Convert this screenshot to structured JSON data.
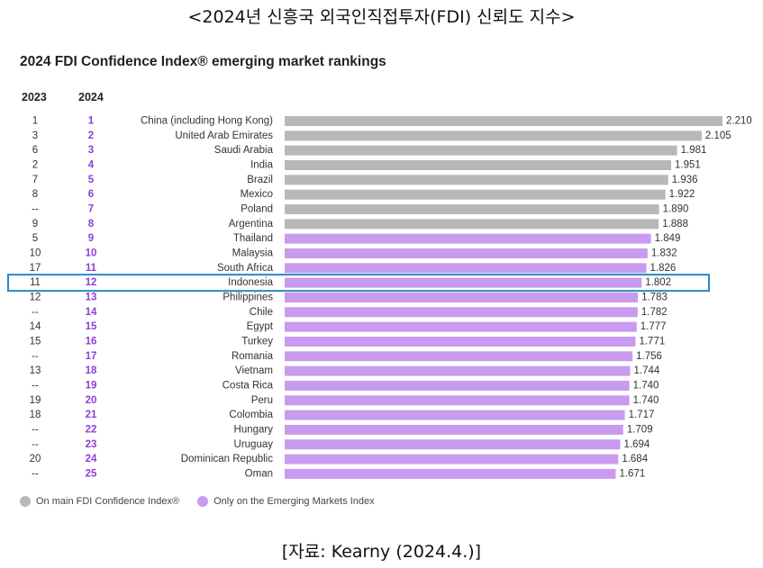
{
  "header": {
    "korean_title": "<2024년 신흥국 외국인직접투자(FDI) 신뢰도 지수>"
  },
  "colors": {
    "main_index": "#b8b8b8",
    "emerging_only": "#c89bf0",
    "rank2024_text": "#8a3fd6",
    "highlight_box": "#2a86c9"
  },
  "chart_data": {
    "type": "bar",
    "orientation": "horizontal",
    "title": "2024 FDI Confidence Index® emerging market rankings",
    "column_headers": {
      "rank_2023": "2023",
      "rank_2024": "2024"
    },
    "categories": [
      "China (including Hong Kong)",
      "United Arab Emirates",
      "Saudi Arabia",
      "India",
      "Brazil",
      "Mexico",
      "Poland",
      "Argentina",
      "Thailand",
      "Malaysia",
      "South Africa",
      "Indonesia",
      "Philippines",
      "Chile",
      "Egypt",
      "Turkey",
      "Romania",
      "Vietnam",
      "Costa Rica",
      "Peru",
      "Colombia",
      "Hungary",
      "Uruguay",
      "Dominican Republic",
      "Oman"
    ],
    "values": [
      2.21,
      2.105,
      1.981,
      1.951,
      1.936,
      1.922,
      1.89,
      1.888,
      1.849,
      1.832,
      1.826,
      1.802,
      1.783,
      1.782,
      1.777,
      1.771,
      1.756,
      1.744,
      1.74,
      1.74,
      1.717,
      1.709,
      1.694,
      1.684,
      1.671
    ],
    "value_labels": [
      "2.210",
      "2.105",
      "1.981",
      "1.951",
      "1.936",
      "1.922",
      "1.890",
      "1.888",
      "1.849",
      "1.832",
      "1.826",
      "1.802",
      "1.783",
      "1.782",
      "1.777",
      "1.771",
      "1.756",
      "1.744",
      "1.740",
      "1.740",
      "1.717",
      "1.709",
      "1.694",
      "1.684",
      "1.671"
    ],
    "rank_2023": [
      "1",
      "3",
      "6",
      "2",
      "7",
      "8",
      "--",
      "9",
      "5",
      "10",
      "17",
      "11",
      "12",
      "--",
      "14",
      "15",
      "--",
      "13",
      "--",
      "19",
      "18",
      "--",
      "--",
      "20",
      "--"
    ],
    "rank_2024": [
      "1",
      "2",
      "3",
      "4",
      "5",
      "6",
      "7",
      "8",
      "9",
      "10",
      "11",
      "12",
      "13",
      "14",
      "15",
      "16",
      "17",
      "18",
      "19",
      "20",
      "21",
      "22",
      "23",
      "24",
      "25"
    ],
    "on_main_index": [
      true,
      true,
      true,
      true,
      true,
      true,
      true,
      true,
      false,
      false,
      false,
      false,
      false,
      false,
      false,
      false,
      false,
      false,
      false,
      false,
      false,
      false,
      false,
      false,
      false
    ],
    "highlighted": "Indonesia",
    "xlim": [
      0,
      2.21
    ],
    "legend": [
      {
        "label": "On main FDI Confidence Index®",
        "color": "#b8b8b8"
      },
      {
        "label": "Only on the Emerging Markets Index",
        "color": "#c89bf0"
      }
    ],
    "legend_position": "bottom-left"
  },
  "footer": {
    "source": "[자료: Kearny (2024.4.)]"
  }
}
